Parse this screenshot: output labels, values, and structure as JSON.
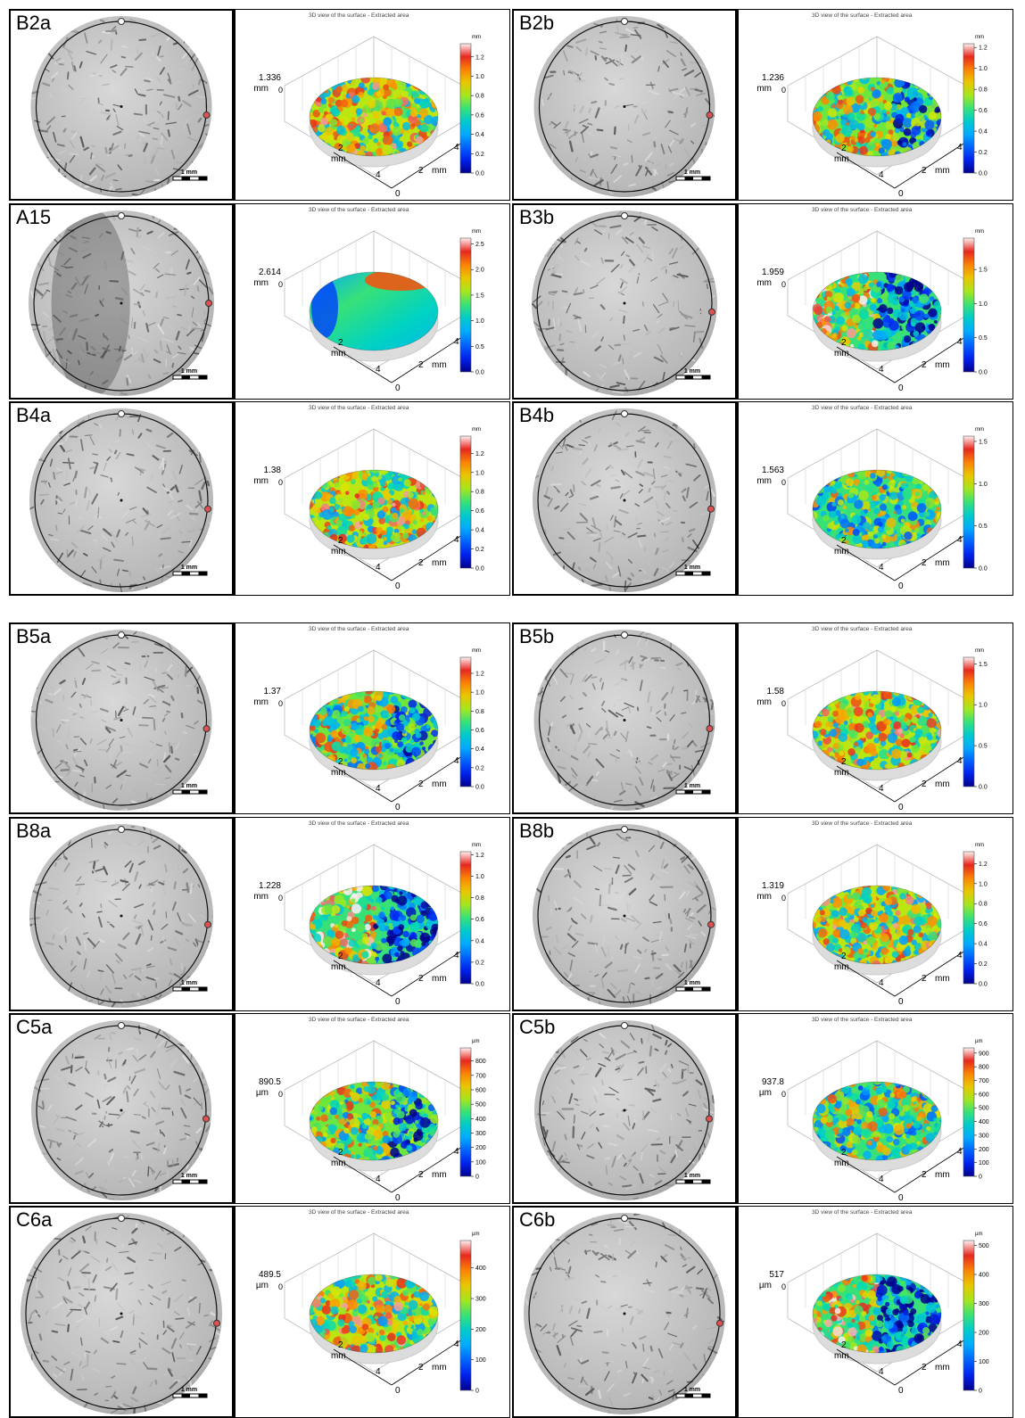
{
  "view_title": "3D view of the surface - Extracted area",
  "scale_label": "1 mm",
  "axis_label_mm": "mm",
  "samples": [
    {
      "label": "B2a",
      "height": "1.336",
      "unit": "mm",
      "ticks": [
        "0.0",
        "0.2",
        "0.4",
        "0.6",
        "0.8",
        "1.0",
        "1.2"
      ],
      "bar_max": 1.336,
      "palette": "rough1"
    },
    {
      "label": "B2b",
      "height": "1.236",
      "unit": "mm",
      "ticks": [
        "0.0",
        "0.2",
        "0.4",
        "0.6",
        "0.8",
        "1.0",
        "1.2"
      ],
      "bar_max": 1.236,
      "palette": "rough2"
    },
    {
      "label": "A15",
      "height": "2.614",
      "unit": "mm",
      "ticks": [
        "0.0",
        "0.5",
        "1.0",
        "1.5",
        "2.0",
        "2.5"
      ],
      "bar_max": 2.614,
      "palette": "smooth"
    },
    {
      "label": "B3b",
      "height": "1.959",
      "unit": "mm",
      "ticks": [
        "0.0",
        "0.5",
        "1.0",
        "1.5"
      ],
      "bar_max": 1.959,
      "palette": "rough3"
    },
    {
      "label": "B4a",
      "height": "1.38",
      "unit": "mm",
      "ticks": [
        "0.0",
        "0.2",
        "0.4",
        "0.6",
        "0.8",
        "1.0",
        "1.2"
      ],
      "bar_max": 1.38,
      "palette": "rough1"
    },
    {
      "label": "B4b",
      "height": "1.563",
      "unit": "mm",
      "ticks": [
        "0.0",
        "0.5",
        "1.0",
        "1.5"
      ],
      "bar_max": 1.563,
      "palette": "rough4"
    },
    {
      "label": "B5a",
      "height": "1.37",
      "unit": "mm",
      "ticks": [
        "0.0",
        "0.2",
        "0.4",
        "0.6",
        "0.8",
        "1.0",
        "1.2"
      ],
      "bar_max": 1.37,
      "palette": "rough2"
    },
    {
      "label": "B5b",
      "height": "1.58",
      "unit": "mm",
      "ticks": [
        "0.0",
        "0.5",
        "1.0",
        "1.5"
      ],
      "bar_max": 1.58,
      "palette": "rough1"
    },
    {
      "label": "B8a",
      "height": "1.228",
      "unit": "mm",
      "ticks": [
        "0.0",
        "0.2",
        "0.4",
        "0.6",
        "0.8",
        "1.0",
        "1.2"
      ],
      "bar_max": 1.228,
      "palette": "rough3"
    },
    {
      "label": "B8b",
      "height": "1.319",
      "unit": "mm",
      "ticks": [
        "0.0",
        "0.2",
        "0.4",
        "0.6",
        "0.8",
        "1.0",
        "1.2"
      ],
      "bar_max": 1.319,
      "palette": "rough1"
    },
    {
      "label": "C5a",
      "height": "890.5",
      "unit": "µm",
      "ticks": [
        "0",
        "100",
        "200",
        "300",
        "400",
        "500",
        "600",
        "700",
        "800"
      ],
      "bar_max": 890.5,
      "palette": "rough2"
    },
    {
      "label": "C5b",
      "height": "937.8",
      "unit": "µm",
      "ticks": [
        "0",
        "100",
        "200",
        "300",
        "400",
        "500",
        "600",
        "700",
        "800",
        "900"
      ],
      "bar_max": 937.8,
      "palette": "rough4"
    },
    {
      "label": "C6a",
      "height": "489.5",
      "unit": "µm",
      "ticks": [
        "0",
        "100",
        "200",
        "300",
        "400"
      ],
      "bar_max": 489.5,
      "palette": "rough1"
    },
    {
      "label": "C6b",
      "height": "517",
      "unit": "µm",
      "ticks": [
        "0",
        "100",
        "200",
        "300",
        "400",
        "500"
      ],
      "bar_max": 517,
      "palette": "rough3"
    }
  ]
}
